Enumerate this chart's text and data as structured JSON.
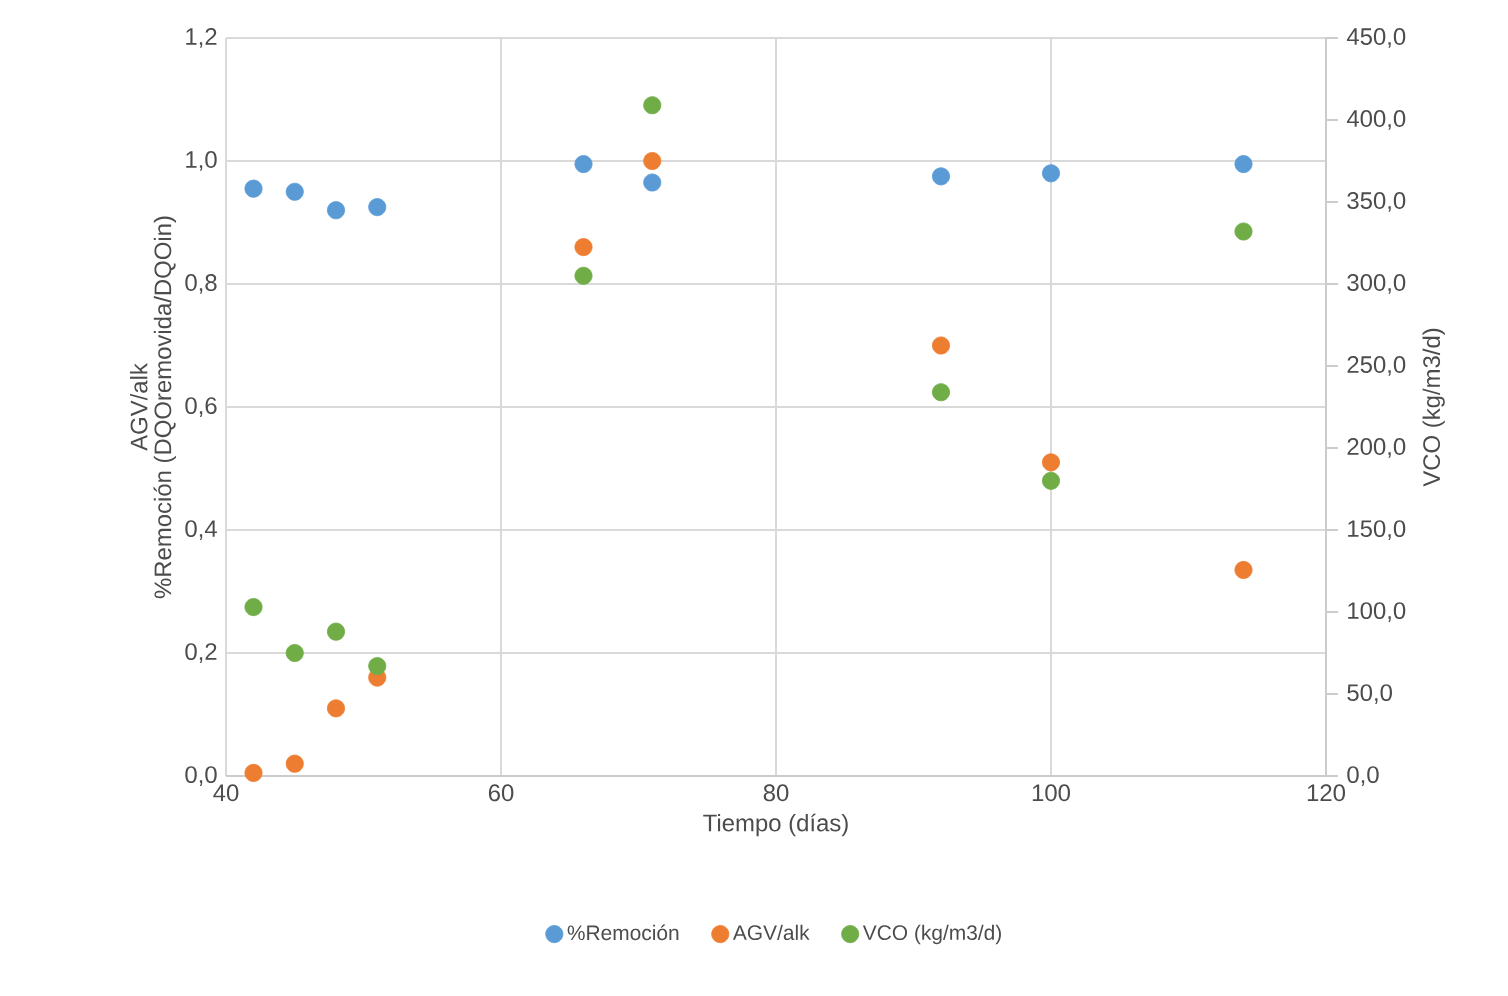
{
  "chart_data": {
    "type": "scatter",
    "xlabel": "Tiempo (días)",
    "ylabel": [
      "AGV/alk",
      "%Remoción (DQOremovida/DQOin)"
    ],
    "y2label": "VCO (kg/m3/d)",
    "x": [
      42,
      45,
      48,
      51,
      66,
      71,
      92,
      100,
      114
    ],
    "series": [
      {
        "name": "%Remoción",
        "color": "#5b9bd5",
        "values": [
          0.955,
          0.95,
          0.92,
          0.925,
          0.995,
          0.965,
          0.975,
          0.98,
          0.995
        ]
      },
      {
        "name": "AGV/alk",
        "color": "#ed7d31",
        "values": [
          0.005,
          0.02,
          0.11,
          0.16,
          0.86,
          1.0,
          0.7,
          0.51,
          0.335
        ]
      },
      {
        "name": "VCO (kg/m3/d)",
        "color": "#70ad47",
        "axis": "y2",
        "values": [
          103,
          75,
          88,
          67,
          305,
          409,
          234,
          180,
          332
        ]
      }
    ],
    "xlim": [
      40,
      120
    ],
    "xticks": [
      40,
      60,
      80,
      100,
      120
    ],
    "ylim": [
      0,
      1.2
    ],
    "yticks": [
      {
        "value": 0,
        "label": "0,0"
      },
      {
        "value": 0.2,
        "label": "0,2"
      },
      {
        "value": 0.4,
        "label": "0,4"
      },
      {
        "value": 0.6,
        "label": "0,6"
      },
      {
        "value": 0.8,
        "label": "0,8"
      },
      {
        "value": 1.0,
        "label": "1,0"
      },
      {
        "value": 1.2,
        "label": "1,2"
      }
    ],
    "y2lim": [
      0,
      450
    ],
    "y2ticks": [
      {
        "value": 0,
        "label": "0,0"
      },
      {
        "value": 50,
        "label": "50,0"
      },
      {
        "value": 100,
        "label": "100,0"
      },
      {
        "value": 150,
        "label": "150,0"
      },
      {
        "value": 200,
        "label": "200,0"
      },
      {
        "value": 250,
        "label": "250,0"
      },
      {
        "value": 300,
        "label": "300,0"
      },
      {
        "value": 350,
        "label": "350,0"
      },
      {
        "value": 400,
        "label": "400,0"
      },
      {
        "value": 450,
        "label": "450,0"
      }
    ],
    "grid": true,
    "legend": "bottom"
  }
}
